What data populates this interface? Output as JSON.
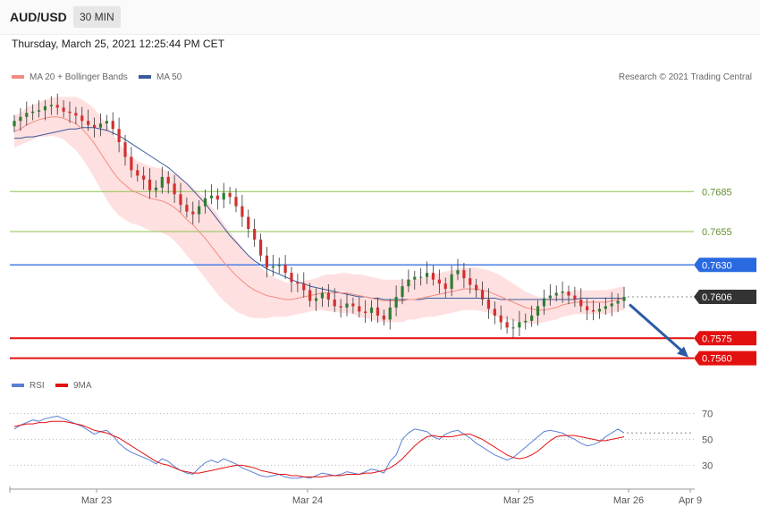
{
  "header": {
    "pair": "AUD/USD",
    "timeframe": "30 MIN",
    "timestamp": "Thursday, March 25, 2021 12:25:44 PM CET"
  },
  "legend": {
    "ma20_label": "MA 20 + Bollinger Bands",
    "ma50_label": "MA 50",
    "copyright": "Research © 2021 Trading Central",
    "rsi_label": "RSI",
    "rsi_ma_label": "9MA"
  },
  "colors": {
    "bull": "#2e7d32",
    "bear": "#d32f2f",
    "band": "#ffd6d6",
    "ma20": "#f28b82",
    "ma50": "#3b5b9a",
    "resistance": "#8bc34a",
    "pivot": "#4a7ee8",
    "support": "#e31010",
    "current": "#333333",
    "rsi": "#5b7fd6",
    "rsi_ma": "#e31010"
  },
  "chart_data": [
    {
      "type": "candlestick",
      "x_ticks": [
        "Mar 23",
        "Mar 24",
        "Mar 25",
        "Mar 26",
        "Apr 9"
      ],
      "ylim": [
        0.7547,
        0.7765
      ],
      "levels": [
        {
          "value": 0.7685,
          "label": "0.7685",
          "kind": "resistance"
        },
        {
          "value": 0.7655,
          "label": "0.7655",
          "kind": "resistance"
        },
        {
          "value": 0.763,
          "label": "0.7630",
          "kind": "pivot"
        },
        {
          "value": 0.7606,
          "label": "0.7606",
          "kind": "current"
        },
        {
          "value": 0.7575,
          "label": "0.7575",
          "kind": "support"
        },
        {
          "value": 0.756,
          "label": "0.7560",
          "kind": "support"
        }
      ],
      "close": [
        0.7738,
        0.7741,
        0.7744,
        0.7745,
        0.7746,
        0.7749,
        0.775,
        0.7748,
        0.7745,
        0.7744,
        0.7742,
        0.7738,
        0.7735,
        0.7733,
        0.7736,
        0.7738,
        0.7732,
        0.7722,
        0.7711,
        0.7701,
        0.7697,
        0.7694,
        0.7686,
        0.7688,
        0.7696,
        0.7691,
        0.7683,
        0.7675,
        0.767,
        0.7668,
        0.7674,
        0.768,
        0.7682,
        0.7679,
        0.7684,
        0.7681,
        0.7674,
        0.7666,
        0.7657,
        0.7649,
        0.7637,
        0.7628,
        0.7629,
        0.763,
        0.7624,
        0.7617,
        0.7616,
        0.7611,
        0.7603,
        0.7605,
        0.7609,
        0.7604,
        0.7599,
        0.7598,
        0.7601,
        0.7599,
        0.7595,
        0.7594,
        0.7598,
        0.7592,
        0.7589,
        0.7598,
        0.7606,
        0.7614,
        0.7619,
        0.7621,
        0.7621,
        0.7624,
        0.7619,
        0.7616,
        0.7612,
        0.7623,
        0.7626,
        0.762,
        0.7615,
        0.7611,
        0.7604,
        0.7597,
        0.7592,
        0.7587,
        0.7583,
        0.7583,
        0.7587,
        0.7588,
        0.7592,
        0.7599,
        0.7605,
        0.7607,
        0.7609,
        0.761,
        0.7607,
        0.7604,
        0.7599,
        0.7596,
        0.7595,
        0.7597,
        0.7599,
        0.7601,
        0.7603,
        0.7606
      ],
      "ma20": [
        0.773,
        0.7732,
        0.7735,
        0.7737,
        0.7739,
        0.774,
        0.7741,
        0.7741,
        0.774,
        0.7738,
        0.7736,
        0.7732,
        0.7727,
        0.7721,
        0.7714,
        0.7707,
        0.77,
        0.7694,
        0.769,
        0.7686,
        0.7684,
        0.7682,
        0.768,
        0.7679,
        0.7678,
        0.7676,
        0.7673,
        0.7669,
        0.7664,
        0.766,
        0.7655,
        0.765,
        0.7644,
        0.7638,
        0.7632,
        0.7627,
        0.7622,
        0.7618,
        0.7614,
        0.7611,
        0.7609,
        0.7607,
        0.7606,
        0.7605,
        0.7604,
        0.7604,
        0.7605,
        0.7606,
        0.7607,
        0.7608,
        0.7609,
        0.7609,
        0.7609,
        0.7609,
        0.7609,
        0.7608,
        0.7607,
        0.7606,
        0.7605,
        0.7604,
        0.7603,
        0.7603,
        0.7603,
        0.7603,
        0.7604,
        0.7604,
        0.7605,
        0.7606,
        0.7607,
        0.7608,
        0.7609,
        0.761,
        0.7611,
        0.7612,
        0.7612,
        0.7612,
        0.7611,
        0.761,
        0.7608,
        0.7606,
        0.7604,
        0.7602,
        0.76,
        0.7598,
        0.7597,
        0.7596,
        0.7596,
        0.7597,
        0.7598,
        0.76,
        0.7601,
        0.7602,
        0.7602,
        0.7602,
        0.7602,
        0.7602,
        0.7602,
        0.7603,
        0.7604,
        0.7605
      ],
      "ma50": [
        0.7725,
        0.7725,
        0.7726,
        0.7726,
        0.7727,
        0.7728,
        0.7729,
        0.773,
        0.7731,
        0.7732,
        0.7732,
        0.7733,
        0.7733,
        0.7733,
        0.7732,
        0.7731,
        0.7729,
        0.7727,
        0.7724,
        0.7721,
        0.7718,
        0.7715,
        0.7712,
        0.7709,
        0.7706,
        0.7703,
        0.7699,
        0.7695,
        0.7691,
        0.7686,
        0.7681,
        0.7676,
        0.767,
        0.7664,
        0.7658,
        0.7652,
        0.7647,
        0.7642,
        0.7637,
        0.7633,
        0.763,
        0.7627,
        0.7625,
        0.7623,
        0.7621,
        0.7619,
        0.7617,
        0.7616,
        0.7614,
        0.7613,
        0.7612,
        0.7611,
        0.761,
        0.7609,
        0.7608,
        0.7607,
        0.7606,
        0.7606,
        0.7605,
        0.7605,
        0.7604,
        0.7604,
        0.7604,
        0.7604,
        0.7604,
        0.7604,
        0.7604,
        0.7605,
        0.7605,
        0.7605,
        0.7605,
        0.7605,
        0.7605,
        0.7605,
        0.7605,
        0.7605,
        0.7605,
        0.7605,
        0.7605,
        0.7604,
        0.7604,
        0.7604,
        0.7604,
        0.7604,
        0.7604,
        0.7604,
        0.7604,
        0.7604,
        0.7604,
        0.7604,
        0.7604,
        0.7604,
        0.7605,
        0.7605,
        0.7605,
        0.7605,
        0.7605,
        0.7605,
        0.7605,
        0.7605
      ],
      "band_width": [
        0.0012,
        0.0012,
        0.0013,
        0.0013,
        0.0013,
        0.0014,
        0.0014,
        0.0015,
        0.0016,
        0.0018,
        0.002,
        0.0022,
        0.0024,
        0.0026,
        0.0027,
        0.0028,
        0.0028,
        0.0027,
        0.0026,
        0.0025,
        0.0024,
        0.0024,
        0.0024,
        0.0024,
        0.0024,
        0.0024,
        0.0025,
        0.0026,
        0.0027,
        0.0028,
        0.0029,
        0.003,
        0.003,
        0.003,
        0.0029,
        0.0028,
        0.0027,
        0.0025,
        0.0023,
        0.0021,
        0.0019,
        0.0017,
        0.0015,
        0.0014,
        0.0013,
        0.0012,
        0.0012,
        0.0012,
        0.0012,
        0.0012,
        0.0013,
        0.0014,
        0.0014,
        0.0015,
        0.0015,
        0.0015,
        0.0016,
        0.0016,
        0.0016,
        0.0016,
        0.0016,
        0.0016,
        0.0016,
        0.0016,
        0.0015,
        0.0015,
        0.0015,
        0.0015,
        0.0016,
        0.0016,
        0.0016,
        0.0016,
        0.0016,
        0.0016,
        0.0016,
        0.0016,
        0.0016,
        0.0016,
        0.0016,
        0.0016,
        0.0015,
        0.0014,
        0.0013,
        0.0012,
        0.0011,
        0.001,
        0.0009,
        0.0009,
        0.0009,
        0.0009,
        0.0009,
        0.0009,
        0.0009,
        0.0009,
        0.0009,
        0.0009,
        0.0009,
        0.0009,
        0.0009,
        0.0009
      ],
      "forecast": {
        "from": 0.7603,
        "to": 0.756
      }
    },
    {
      "type": "line",
      "name": "RSI",
      "ylim": [
        13,
        80
      ],
      "y_ticks": [
        70,
        50,
        30
      ],
      "reference": 50,
      "rsi": [
        58,
        61,
        63,
        65,
        64,
        66,
        67,
        68,
        66,
        64,
        62,
        60,
        57,
        54,
        56,
        57,
        53,
        47,
        43,
        40,
        38,
        36,
        34,
        31,
        35,
        33,
        29,
        26,
        24,
        23,
        28,
        32,
        34,
        32,
        35,
        33,
        31,
        28,
        26,
        24,
        22,
        21,
        22,
        23,
        21,
        20,
        20,
        21,
        20,
        22,
        24,
        23,
        22,
        23,
        25,
        24,
        23,
        25,
        27,
        26,
        24,
        33,
        38,
        50,
        55,
        58,
        57,
        56,
        52,
        50,
        54,
        56,
        57,
        54,
        51,
        47,
        44,
        41,
        38,
        36,
        34,
        36,
        40,
        44,
        48,
        52,
        56,
        57,
        56,
        55,
        52,
        50,
        47,
        45,
        46,
        48,
        52,
        55,
        58,
        55
      ],
      "rsi_ma": [
        60,
        61,
        62,
        62,
        63,
        63,
        64,
        64,
        64,
        63,
        62,
        61,
        59,
        57,
        56,
        55,
        53,
        51,
        48,
        45,
        42,
        39,
        36,
        33,
        31,
        30,
        28,
        26,
        25,
        24,
        24,
        25,
        26,
        27,
        28,
        29,
        30,
        30,
        29,
        28,
        26,
        25,
        24,
        23,
        23,
        22,
        22,
        21,
        21,
        21,
        21,
        22,
        22,
        22,
        23,
        23,
        23,
        24,
        24,
        25,
        26,
        28,
        31,
        35,
        40,
        45,
        49,
        52,
        53,
        52,
        52,
        52,
        53,
        54,
        54,
        52,
        50,
        47,
        44,
        41,
        38,
        36,
        35,
        36,
        38,
        41,
        45,
        49,
        52,
        53,
        53,
        53,
        52,
        51,
        50,
        49,
        49,
        50,
        51,
        52
      ]
    }
  ]
}
